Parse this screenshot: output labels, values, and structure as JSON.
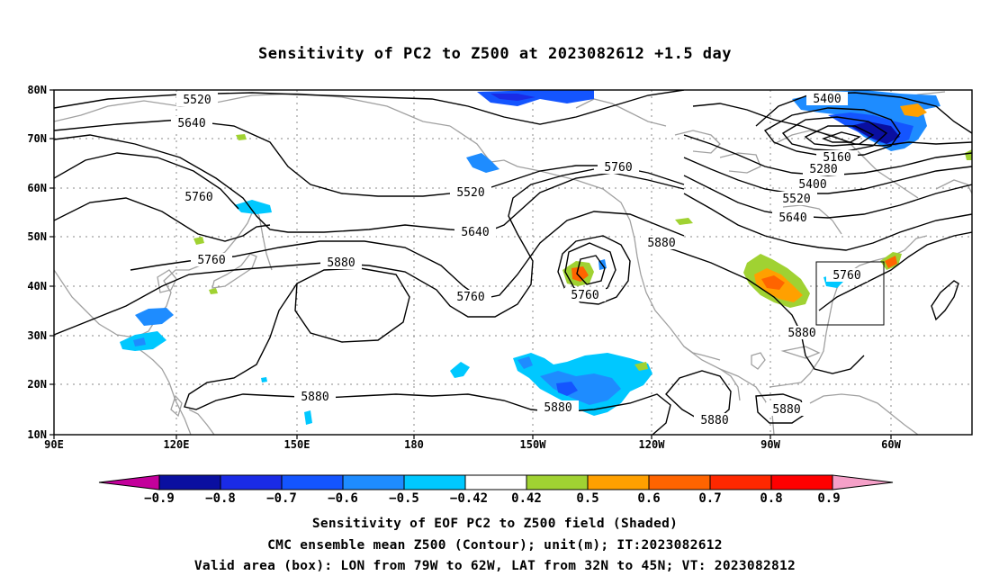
{
  "title": "Sensitivity of PC2 to Z500 at 2023082612 +1.5 day",
  "map": {
    "lat_labels": [
      "80N",
      "70N",
      "60N",
      "50N",
      "40N",
      "30N",
      "20N",
      "10N"
    ],
    "lon_labels": [
      "90E",
      "120E",
      "150E",
      "180",
      "150W",
      "120W",
      "90W",
      "60W"
    ],
    "contour_labels": [
      "5520",
      "5640",
      "5760",
      "5760",
      "5880",
      "5760",
      "5520",
      "5640",
      "5760",
      "5760",
      "5880",
      "5400",
      "5160",
      "5280",
      "5400",
      "5520",
      "5640",
      "5760",
      "5880",
      "5880",
      "5880",
      "5880",
      "5880"
    ],
    "contour_color": "#000000",
    "coast_color": "#a0a0a0",
    "valid_box": {
      "lon_from": "79W",
      "lon_to": "62W",
      "lat_from": "32N",
      "lat_to": "45N"
    }
  },
  "colorbar": {
    "labels": [
      "−0.9",
      "−0.8",
      "−0.7",
      "−0.6",
      "−0.5",
      "−0.42",
      "0.42",
      "0.5",
      "0.6",
      "0.7",
      "0.8",
      "0.9"
    ],
    "colors": [
      "#c3009b",
      "#0a0fa0",
      "#1a2be6",
      "#1455ff",
      "#1e8cff",
      "#00c8ff",
      "#ffffff",
      "#a0d232",
      "#ffa000",
      "#ff6400",
      "#ff2800",
      "#ff0000",
      "#f5a0c8"
    ]
  },
  "captions": [
    "Sensitivity of EOF PC2 to Z500 field (Shaded)",
    "CMC ensemble mean Z500 (Contour); unit(m); IT:2023082612",
    "Valid area (box): LON from 79W to 62W, LAT from 32N to 45N; VT: 2023082812"
  ]
}
